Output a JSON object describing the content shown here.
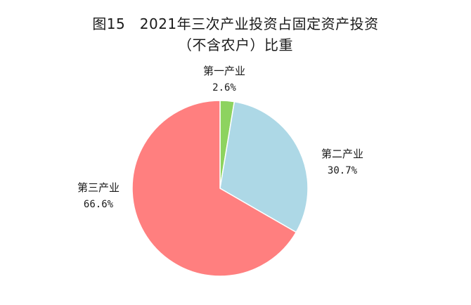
{
  "title": {
    "line1": "图15　2021年三次产业投资占固定资产投资",
    "line2": "（不含农户）比重"
  },
  "colors": {
    "primary": "#8dd35f",
    "secondary": "#add8e6",
    "tertiary": "#ff7f7f"
  },
  "chart_data": {
    "type": "pie",
    "title": "2021年三次产业投资占固定资产投资（不含农户）比重",
    "slices": [
      {
        "label": "第一产业",
        "value": 2.6,
        "display": "2.6%",
        "color": "#8dd35f"
      },
      {
        "label": "第二产业",
        "value": 30.7,
        "display": "30.7%",
        "color": "#add8e6"
      },
      {
        "label": "第三产业",
        "value": 66.6,
        "display": "66.6%",
        "color": "#ff7f7f"
      }
    ],
    "start": "top",
    "direction": "clockwise",
    "unit": "%"
  }
}
